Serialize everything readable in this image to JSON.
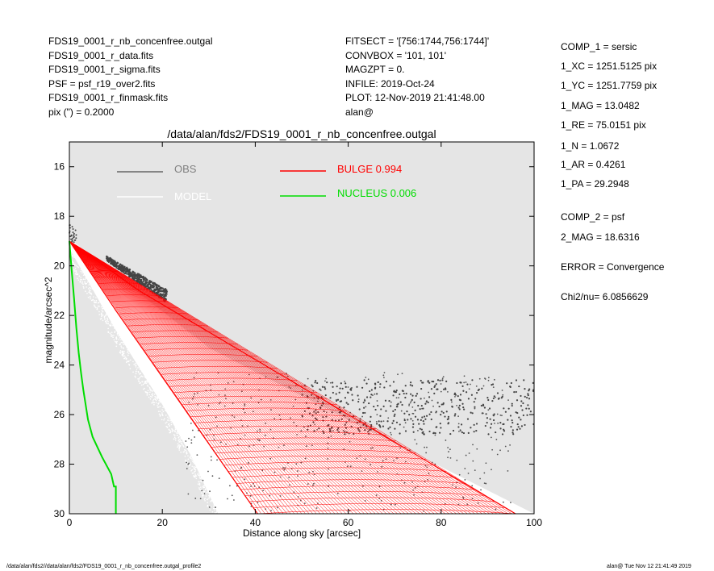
{
  "header_left": [
    "FDS19_0001_r_nb_concenfree.outgal",
    "FDS19_0001_r_data.fits",
    "FDS19_0001_r_sigma.fits",
    "PSF     = psf_r19_over2.fits",
    "FDS19_0001_r_finmask.fits",
    "pix (\") =  0.2000"
  ],
  "header_mid": [
    "FITSECT = '[756:1744,756:1744]'",
    "CONVBOX = '101, 101'",
    "MAGZPT  =               0.",
    "INFILE: 2019-Oct-24",
    "PLOT: 12-Nov-2019 21:41:48.00",
    "alan@"
  ],
  "params": [
    "COMP_1  = sersic",
    "1_XC    = 1251.5125 pix",
    "1_YC    = 1251.7759 pix",
    "1_MAG   = 13.0482",
    "1_RE    = 75.0151 pix",
    "1_N     = 1.0672",
    "1_AR    = 0.4261",
    "1_PA    = 29.2948",
    "COMP_2  = psf",
    "2_MAG   = 18.6316",
    "ERROR   = Convergence",
    "Chi2/nu=       6.0856629"
  ],
  "footer": {
    "left": "/data/alan/fds2//data/alan/fds2/FDS19_0001_r_nb_concenfree.outgal_profile2",
    "right": "alan@  Tue Nov 12 21:41:49 2019"
  },
  "chart_data": {
    "type": "scatter",
    "title": "/data/alan/fds2/FDS19_0001_r_nb_concenfree.outgal",
    "xlabel": "Distance along sky [arcsec]",
    "ylabel": "magnitude/arcsec^2",
    "xlim": [
      0,
      100
    ],
    "ylim": [
      30,
      15
    ],
    "y_inverted": true,
    "xticks": [
      0,
      20,
      40,
      60,
      80,
      100
    ],
    "yticks": [
      16,
      18,
      20,
      22,
      24,
      26,
      28,
      30
    ],
    "background_color": "#e5e5e5",
    "legend": [
      {
        "label": "OBS",
        "color": "#808080"
      },
      {
        "label": "MODEL",
        "color": "#ffffff"
      },
      {
        "label": "BULGE  0.994",
        "color": "#ff0000"
      },
      {
        "label": "NUCLEUS  0.006",
        "color": "#00dd00"
      }
    ],
    "series": [
      {
        "name": "BULGE",
        "color": "#ff0000",
        "kind": "fan",
        "apex": [
          0,
          19.0
        ],
        "upper_edge": [
          [
            0,
            19.0
          ],
          [
            15,
            21.0
          ],
          [
            96,
            30.0
          ]
        ],
        "lower_edge": [
          [
            0,
            19.0
          ],
          [
            10,
            21.8
          ],
          [
            40.5,
            30.0
          ]
        ]
      },
      {
        "name": "NUCLEUS",
        "color": "#00dd00",
        "points": [
          [
            0,
            19.0
          ],
          [
            0.5,
            20.2
          ],
          [
            1,
            21.3
          ],
          [
            1.5,
            22.5
          ],
          [
            2,
            23.5
          ],
          [
            2.5,
            24.3
          ],
          [
            3,
            25.0
          ],
          [
            3.5,
            25.6
          ],
          [
            4,
            26.2
          ],
          [
            5,
            26.9
          ],
          [
            7,
            27.7
          ],
          [
            9,
            28.4
          ],
          [
            9.6,
            28.9
          ],
          [
            10,
            28.9
          ],
          [
            10,
            30.0
          ]
        ]
      },
      {
        "name": "MODEL",
        "color": "#ffffff",
        "kind": "band",
        "upper_edge": [
          [
            0,
            18.9
          ],
          [
            30,
            23.3
          ],
          [
            64,
            26.6
          ],
          [
            100,
            30.0
          ]
        ],
        "lower_edge": [
          [
            0,
            19.3
          ],
          [
            10,
            22.6
          ],
          [
            20,
            25.6
          ],
          [
            26,
            27.6
          ],
          [
            32,
            30.0
          ]
        ]
      },
      {
        "name": "OBS",
        "color": "#444444",
        "kind": "cloud",
        "bump": {
          "x": [
            8,
            21
          ],
          "y": [
            19.6,
            21.1
          ]
        },
        "noise_floor": {
          "x": [
            50,
            100
          ],
          "y": [
            24.6,
            26.8
          ]
        },
        "tail": {
          "x": [
            0,
            1.5
          ],
          "y": [
            18.3,
            19.1
          ]
        }
      }
    ]
  }
}
